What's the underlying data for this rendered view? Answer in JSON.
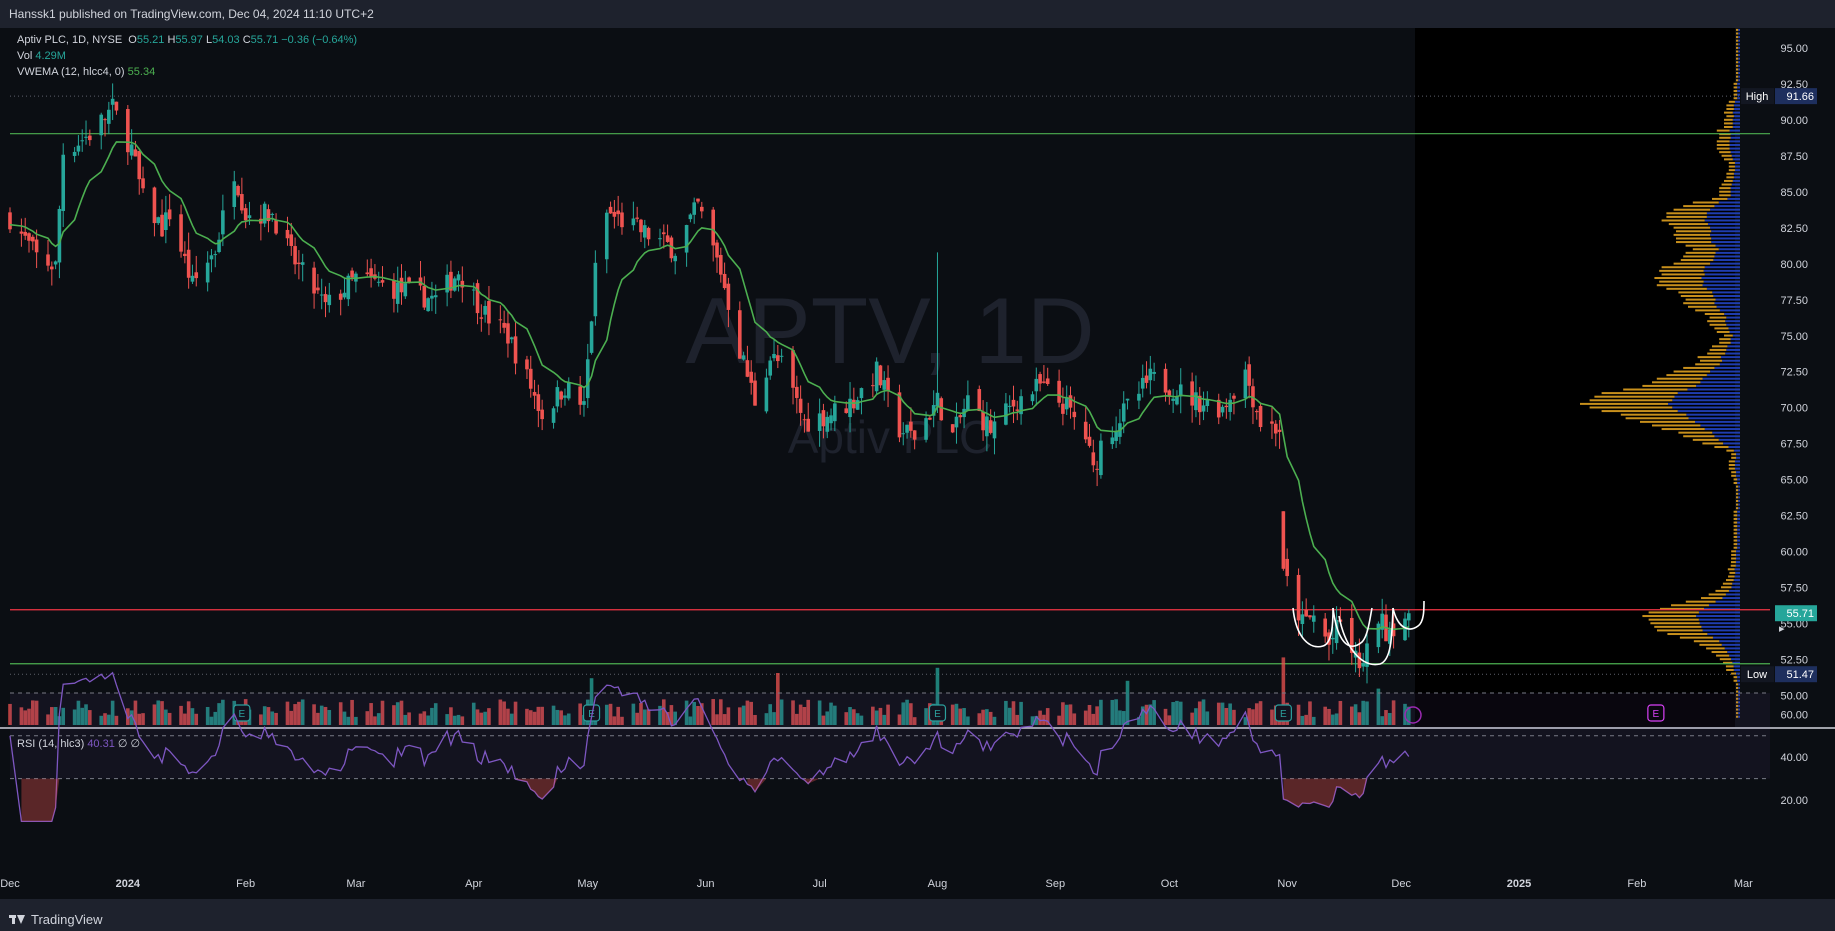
{
  "header": {
    "publish_line": "Hanssk1 published on TradingView.com, Dec 04, 2024 11:10 UTC+2"
  },
  "legend": {
    "symbol": "Aptiv PLC, 1D, NYSE",
    "o_label": "O",
    "o": "55.21",
    "h_label": "H",
    "h": "55.97",
    "l_label": "L",
    "l": "54.03",
    "c_label": "C",
    "c": "55.71",
    "change": "−0.36 (−0.64%)",
    "vol_label": "Vol",
    "vol": "4.29M",
    "vwema_label": "VWEMA (12, hlcc4, 0)",
    "vwema": "55.34",
    "rsi_label": "RSI (14, hlc3)",
    "rsi": "40.31",
    "rsi_extra": "∅ ∅"
  },
  "watermark": {
    "ticker": "APTV, 1D",
    "name": "Aptiv PLC"
  },
  "footer": {
    "brand": "TradingView"
  },
  "colors": {
    "background": "#0b0e13",
    "up": "#26a69a",
    "down": "#ef5350",
    "vwema": "#4caf50",
    "rsi": "#7e57c2",
    "vp_up": "#1f3db0",
    "vp_down": "#c8901c",
    "price_line": "#f23645",
    "badge": "#26a69a",
    "high_low_badge": "#1e2f5e",
    "marker_purple": "#e040fb"
  },
  "chart_data": [
    {
      "type": "candlestick",
      "symbol": "APTV",
      "interval": "1D",
      "yaxis": {
        "ticks": [
          "95.00",
          "92.50",
          "90.00",
          "87.50",
          "85.00",
          "82.50",
          "80.00",
          "77.50",
          "75.00",
          "72.50",
          "70.00",
          "67.50",
          "65.00",
          "62.50",
          "60.00",
          "57.50",
          "55.00",
          "52.50",
          "50.00"
        ],
        "range": [
          47.5,
          97
        ]
      },
      "xaxis": {
        "ticks": [
          "Dec",
          "2024",
          "Feb",
          "Mar",
          "Apr",
          "May",
          "Jun",
          "Jul",
          "Aug",
          "Sep",
          "Oct",
          "Nov",
          "Dec",
          "2025",
          "Feb",
          "Mar"
        ]
      },
      "price_anchors": [
        {
          "d": "2023-12-01",
          "v": 83.2
        },
        {
          "d": "2023-12-08",
          "v": 80.5
        },
        {
          "d": "2023-12-13",
          "v": 79.8
        },
        {
          "d": "2023-12-15",
          "v": 87.8
        },
        {
          "d": "2023-12-22",
          "v": 89.0
        },
        {
          "d": "2023-12-28",
          "v": 90.8
        },
        {
          "d": "2024-01-02",
          "v": 88.0
        },
        {
          "d": "2024-01-05",
          "v": 84.5
        },
        {
          "d": "2024-01-10",
          "v": 82.5
        },
        {
          "d": "2024-01-12",
          "v": 83.5
        },
        {
          "d": "2024-01-18",
          "v": 78.5
        },
        {
          "d": "2024-01-24",
          "v": 81.0
        },
        {
          "d": "2024-01-29",
          "v": 86.5
        },
        {
          "d": "2024-02-01",
          "v": 83.5
        },
        {
          "d": "2024-02-08",
          "v": 83.5
        },
        {
          "d": "2024-02-13",
          "v": 80.5
        },
        {
          "d": "2024-02-22",
          "v": 77.0
        },
        {
          "d": "2024-03-01",
          "v": 79.0
        },
        {
          "d": "2024-03-08",
          "v": 78.5
        },
        {
          "d": "2024-03-15",
          "v": 78.0
        },
        {
          "d": "2024-03-22",
          "v": 77.5
        },
        {
          "d": "2024-03-28",
          "v": 79.5
        },
        {
          "d": "2024-04-04",
          "v": 76.5
        },
        {
          "d": "2024-04-10",
          "v": 75.0
        },
        {
          "d": "2024-04-16",
          "v": 71.5
        },
        {
          "d": "2024-04-19",
          "v": 69.5
        },
        {
          "d": "2024-04-25",
          "v": 71.5
        },
        {
          "d": "2024-04-30",
          "v": 70.0
        },
        {
          "d": "2024-05-03",
          "v": 79.5
        },
        {
          "d": "2024-05-06",
          "v": 83.5
        },
        {
          "d": "2024-05-10",
          "v": 83.0
        },
        {
          "d": "2024-05-17",
          "v": 82.0
        },
        {
          "d": "2024-05-24",
          "v": 81.0
        },
        {
          "d": "2024-05-30",
          "v": 84.0
        },
        {
          "d": "2024-06-05",
          "v": 79.5
        },
        {
          "d": "2024-06-10",
          "v": 74.0
        },
        {
          "d": "2024-06-14",
          "v": 70.5
        },
        {
          "d": "2024-06-18",
          "v": 73.5
        },
        {
          "d": "2024-06-21",
          "v": 73.0
        },
        {
          "d": "2024-06-27",
          "v": 69.0
        },
        {
          "d": "2024-07-03",
          "v": 69.5
        },
        {
          "d": "2024-07-10",
          "v": 70.5
        },
        {
          "d": "2024-07-16",
          "v": 72.5
        },
        {
          "d": "2024-07-22",
          "v": 68.5
        },
        {
          "d": "2024-07-26",
          "v": 68.0
        },
        {
          "d": "2024-08-01",
          "v": 70.5
        },
        {
          "d": "2024-08-05",
          "v": 68.0
        },
        {
          "d": "2024-08-09",
          "v": 70.5
        },
        {
          "d": "2024-08-15",
          "v": 68.5
        },
        {
          "d": "2024-08-22",
          "v": 70.5
        },
        {
          "d": "2024-08-28",
          "v": 71.5
        },
        {
          "d": "2024-09-04",
          "v": 70.0
        },
        {
          "d": "2024-09-09",
          "v": 68.0
        },
        {
          "d": "2024-09-11",
          "v": 65.5
        },
        {
          "d": "2024-09-13",
          "v": 67.5
        },
        {
          "d": "2024-09-20",
          "v": 70.0
        },
        {
          "d": "2024-09-26",
          "v": 72.0
        },
        {
          "d": "2024-10-01",
          "v": 71.5
        },
        {
          "d": "2024-10-08",
          "v": 70.5
        },
        {
          "d": "2024-10-15",
          "v": 70.0
        },
        {
          "d": "2024-10-21",
          "v": 72.5
        },
        {
          "d": "2024-10-25",
          "v": 69.0
        },
        {
          "d": "2024-10-30",
          "v": 68.5
        },
        {
          "d": "2024-10-31",
          "v": 58.5
        },
        {
          "d": "2024-11-05",
          "v": 55.0
        },
        {
          "d": "2024-11-08",
          "v": 55.5
        },
        {
          "d": "2024-11-12",
          "v": 53.5
        },
        {
          "d": "2024-11-15",
          "v": 55.0
        },
        {
          "d": "2024-11-19",
          "v": 52.5
        },
        {
          "d": "2024-11-21",
          "v": 52.0
        },
        {
          "d": "2024-11-25",
          "v": 55.5
        },
        {
          "d": "2024-11-27",
          "v": 54.5
        },
        {
          "d": "2024-12-03",
          "v": 55.71
        }
      ],
      "horizontal_lines": [
        {
          "value": 89.05,
          "color": "#4caf50"
        },
        {
          "value": 55.95,
          "color": "#f23645"
        },
        {
          "value": 52.2,
          "color": "#4caf50"
        },
        {
          "value": 91.66,
          "label": "High",
          "style": "dotted"
        },
        {
          "value": 51.47,
          "label": "Low",
          "style": "dotted"
        }
      ],
      "price_badges": [
        {
          "label": "High",
          "value": "91.66"
        },
        {
          "label": "",
          "value": "55.71"
        },
        {
          "label": "Low",
          "value": "51.47"
        }
      ],
      "earnings_markers": [
        "2024-01-31",
        "2024-05-02",
        "2024-08-01",
        "2024-10-31",
        "2025-02-06"
      ]
    },
    {
      "type": "volume_profile",
      "note_colors": [
        "up volume",
        "down volume"
      ],
      "price_range": [
        48.5,
        97
      ]
    },
    {
      "type": "line",
      "name": "RSI (14, hlc3)",
      "yaxis": {
        "ticks": [
          "60.00",
          "40.00",
          "20.00"
        ],
        "levels": [
          70,
          50,
          30
        ]
      },
      "last_value": 40.31
    }
  ]
}
